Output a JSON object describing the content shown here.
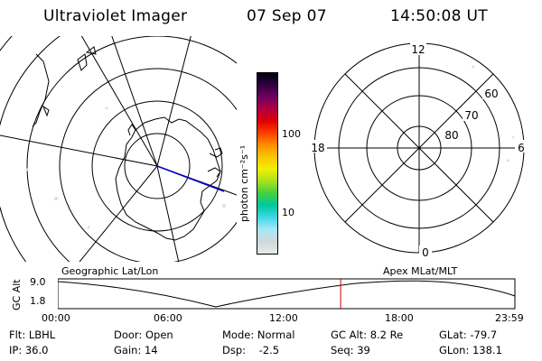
{
  "header": {
    "instrument": "Ultraviolet Imager",
    "date": "07 Sep 07",
    "time": "14:50:08 UT"
  },
  "colorbar": {
    "unit_label": "photon cm⁻²s⁻¹",
    "ticks": [
      "100",
      "10"
    ],
    "colors": [
      "#e8e8e8",
      "#cfd8dc",
      "#a6e8f4",
      "#40d8e8",
      "#00c8a0",
      "#40d040",
      "#a8e020",
      "#f0f000",
      "#f8c800",
      "#ff9000",
      "#ff4000",
      "#e00000",
      "#b00040",
      "#700060",
      "#300040",
      "#000010"
    ]
  },
  "left_panel": {
    "caption": "Geographic Lat/Lon"
  },
  "right_panel": {
    "caption": "Apex  MLat/MLT",
    "mlt_labels": [
      "12",
      "18",
      "6",
      "0"
    ],
    "mlat_labels": [
      "60",
      "70",
      "80"
    ]
  },
  "altitude_plot": {
    "axis_title": "GC Alt",
    "y_ticks": [
      "9.0",
      "1.8"
    ],
    "x_ticks": [
      "00:00",
      "06:00",
      "12:00",
      "18:00",
      "23:59"
    ],
    "current_time_marker_hours": 14.84,
    "marker_color": "#cc0000"
  },
  "status": {
    "row1": [
      "Flt: LBHL",
      "Door: Open",
      "Mode: Normal",
      "GC Alt: 8.2 Re",
      "GLat: -79.7"
    ],
    "row2": [
      "IP: 36.0",
      "Gain: 14",
      "Dsp:    -2.5",
      "Seq: 39",
      "GLon: 138.1"
    ]
  }
}
